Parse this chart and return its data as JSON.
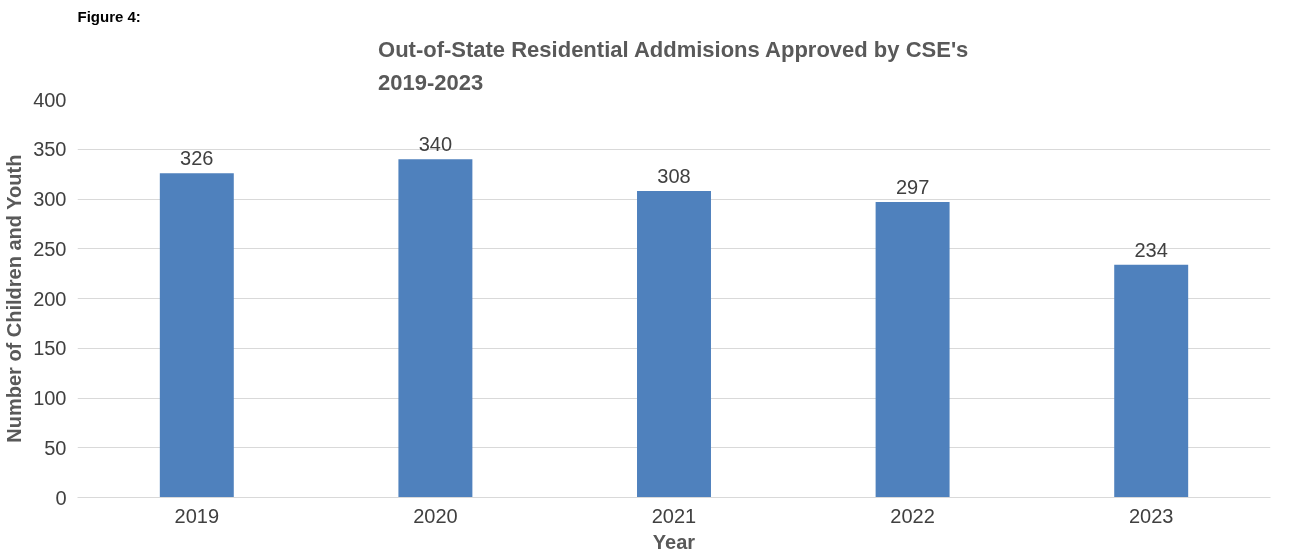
{
  "chart_data": {
    "type": "bar",
    "title": "Out-of-State Residential Addmisions Approved by CSE's\n2019-2023",
    "categories": [
      "2019",
      "2020",
      "2021",
      "2022",
      "2023"
    ],
    "values": [
      326,
      340,
      308,
      297,
      234
    ],
    "color": "#4f81bd",
    "xlabel": "Year",
    "ylabel": "Number of Children and Youth",
    "ylim": [
      0,
      400
    ],
    "yticks": [
      0,
      50,
      100,
      150,
      200,
      250,
      300,
      350,
      400
    ],
    "grid": "y",
    "data_labels": true,
    "annotations": [
      "Figure 4:"
    ]
  }
}
